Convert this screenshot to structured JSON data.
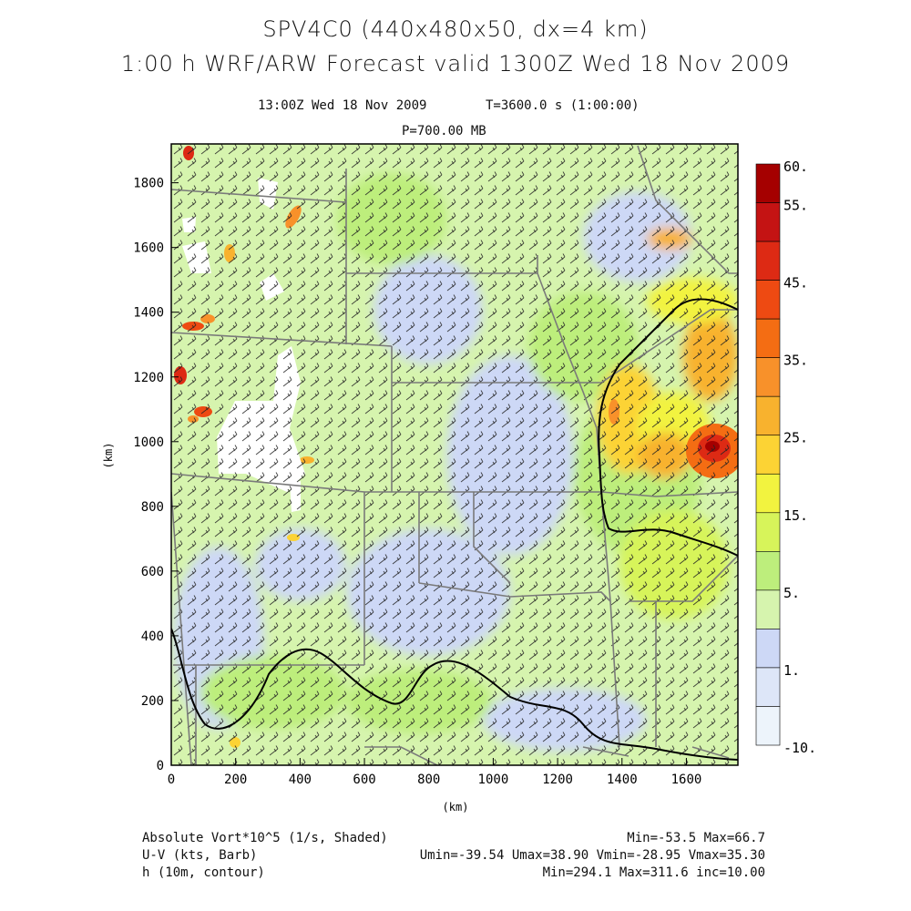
{
  "header": {
    "title_line1": "SPV4C0 (440x480x50, dx=4 km)",
    "title_line2": "1:00 h  WRF/ARW Forecast valid 1300Z Wed 18 Nov 2009",
    "valid_time": "13:00Z Wed 18 Nov 2009",
    "model_time": "T=3600.0 s (1:00:00)",
    "level": "P=700.00 MB"
  },
  "axes": {
    "x_label": "(km)",
    "y_label": "(km)",
    "x_ticks": [
      "0",
      "200",
      "400",
      "600",
      "800",
      "1000",
      "1200",
      "1400",
      "1600"
    ],
    "y_ticks": [
      "0",
      "200",
      "400",
      "600",
      "800",
      "1000",
      "1200",
      "1400",
      "1600",
      "1800"
    ],
    "x_range_km": [
      0,
      1760
    ],
    "y_range_km": [
      0,
      1920
    ]
  },
  "colorbar": {
    "labels": [
      "60.",
      "55.",
      "45.",
      "35.",
      "25.",
      "15.",
      "5.",
      "1.",
      "-10."
    ],
    "colors": [
      "#a50000",
      "#c41313",
      "#dd2a14",
      "#ee4a12",
      "#f46d13",
      "#f8912a",
      "#f8b22e",
      "#fcd334",
      "#f2f33f",
      "#d7f45a",
      "#bdee7c",
      "#d6f4ae",
      "#cdd8f6",
      "#dde6f8",
      "#edf4fb"
    ]
  },
  "footer": {
    "field1_label": "Absolute Vort*10^5 (1/s, Shaded)",
    "field2_label": "U-V (kts, Barb)",
    "field3_label": "h (10m, contour)",
    "field1_stats": "Min=-53.5 Max=66.7",
    "field2_stats": "Umin=-39.54 Umax=38.90 Vmin=-28.95 Vmax=35.30",
    "field3_stats": "Min=294.1 Max=311.6 inc=10.00"
  }
}
